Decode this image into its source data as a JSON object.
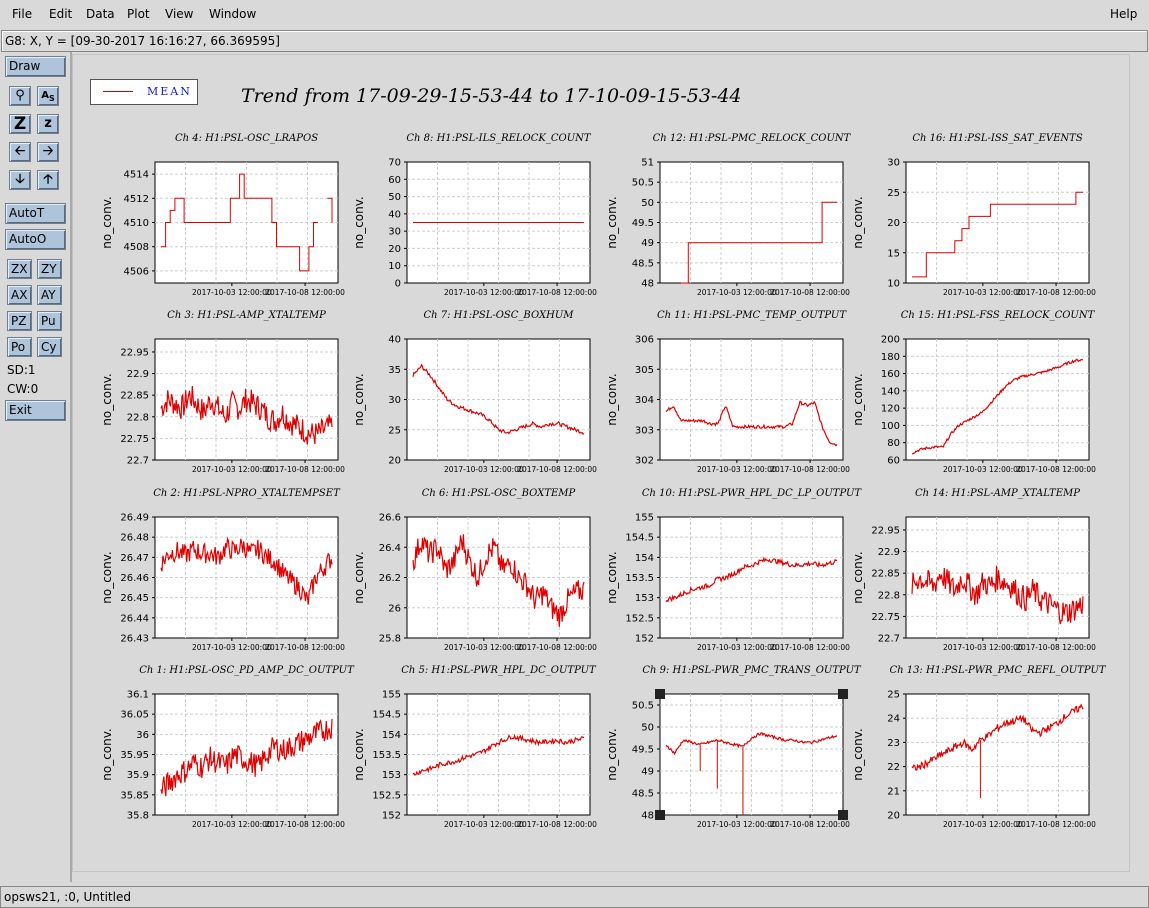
{
  "menu": {
    "file": "File",
    "edit": "Edit",
    "data": "Data",
    "plot": "Plot",
    "view": "View",
    "window": "Window",
    "help": "Help"
  },
  "coord_text": "G8: X, Y = [09-30-2017 16:16:27, 66.369595]",
  "toolbar": {
    "draw": "Draw",
    "autot": "AutoT",
    "autoo": "AutoO",
    "zx": "ZX",
    "zy": "ZY",
    "ax": "AX",
    "ay": "AY",
    "pz": "PZ",
    "pu": "Pu",
    "po": "Po",
    "cy": "Cy",
    "sd": "SD:1",
    "cw": "CW:0",
    "exit": "Exit",
    "icons": [
      "magnify-icon",
      "text-size-icon",
      "zoom-large-icon",
      "zoom-small-icon",
      "arrow-left-icon",
      "arrow-right-icon",
      "arrow-down-icon",
      "arrow-up-icon"
    ]
  },
  "legend": {
    "label": "MEAN",
    "color": "#e00000"
  },
  "main_title": "Trend from 17-09-29-15-53-44 to 17-10-09-15-53-44",
  "status_text": "opsws21, :0, Untitled",
  "chart_data": [
    {
      "type": "line",
      "title": "Ch 4: H1:PSL-OSC_LRAPOS",
      "ylabel": "no_conv.",
      "yticks": [
        "4514",
        "4512",
        "4510",
        "4508",
        "4506"
      ],
      "ylim": [
        4505,
        4515
      ],
      "xticks": [
        "2017-10-03 12:00:00",
        "2017-10-08 12:00:00"
      ],
      "style": "step",
      "values": [
        4508,
        4510,
        4511,
        4512,
        4512,
        4510,
        4510,
        4510,
        4510,
        4510,
        4510,
        4510,
        4510,
        4510,
        4510,
        4512,
        4512,
        4514,
        4512,
        4512,
        4512,
        4512,
        4512,
        4512,
        4510,
        4508,
        4508,
        4508,
        4508,
        4508,
        4506,
        4506,
        4508,
        4510,
        4510,
        null,
        4512,
        4510
      ]
    },
    {
      "type": "line",
      "title": "Ch 8: H1:PSL-ILS_RELOCK_COUNT",
      "ylabel": "no_conv.",
      "yticks": [
        "70",
        "60",
        "50",
        "40",
        "30",
        "20",
        "10",
        "0"
      ],
      "ylim": [
        0,
        70
      ],
      "xticks": [
        "2017-10-03 12:00:00",
        "2017-10-08 12:00:00"
      ],
      "style": "step",
      "values": [
        35,
        35,
        35,
        35,
        35,
        35,
        35,
        35,
        35,
        35,
        35,
        35,
        35,
        35,
        35,
        35,
        35,
        35,
        35,
        35
      ]
    },
    {
      "type": "line",
      "title": "Ch 12: H1:PSL-PMC_RELOCK_COUNT",
      "ylabel": "no_conv.",
      "yticks": [
        "51",
        "50.5",
        "50",
        "49.5",
        "49",
        "48.5",
        "48"
      ],
      "ylim": [
        48,
        51
      ],
      "xticks": [
        "2017-10-03 12:00:00",
        "2017-10-08 12:00:00"
      ],
      "style": "step",
      "values": [
        null,
        null,
        48,
        49,
        49,
        49,
        49,
        49,
        49,
        49,
        49,
        49,
        49,
        49,
        49,
        49,
        49,
        49,
        49,
        49,
        49,
        50,
        50,
        50
      ]
    },
    {
      "type": "line",
      "title": "Ch 16: H1:PSL-ISS_SAT_EVENTS",
      "ylabel": "no_conv.",
      "yticks": [
        "30",
        "25",
        "20",
        "15",
        "10"
      ],
      "ylim": [
        10,
        30
      ],
      "xticks": [
        "2017-10-03 12:00:00",
        "2017-10-08 12:00:00"
      ],
      "style": "step",
      "values": [
        11,
        11,
        15,
        15,
        15,
        15,
        17,
        19,
        21,
        21,
        21,
        23,
        23,
        23,
        23,
        23,
        23,
        23,
        23,
        23,
        23,
        23,
        23,
        25,
        25
      ]
    },
    {
      "type": "line",
      "title": "Ch 3: H1:PSL-AMP_XTALTEMP",
      "ylabel": "no_conv.",
      "yticks": [
        "22.95",
        "22.9",
        "22.85",
        "22.8",
        "22.75",
        "22.7"
      ],
      "ylim": [
        22.7,
        22.98
      ],
      "xticks": [
        "2017-10-03 12:00:00",
        "2017-10-08 12:00:00"
      ],
      "style": "noisy",
      "values": [
        22.82,
        22.84,
        22.83,
        22.82,
        22.85,
        22.83,
        22.81,
        22.84,
        22.82,
        22.8,
        22.83,
        22.82,
        22.84,
        22.83,
        22.82,
        22.8,
        22.79,
        22.81,
        22.79,
        22.78,
        22.77,
        22.76,
        22.76,
        22.77,
        22.78
      ],
      "noise": 0.03
    },
    {
      "type": "line",
      "title": "Ch 7: H1:PSL-OSC_BOXHUM",
      "ylabel": "no_conv.",
      "yticks": [
        "40",
        "35",
        "30",
        "25",
        "20"
      ],
      "ylim": [
        20,
        40
      ],
      "xticks": [
        "2017-10-03 12:00:00",
        "2017-10-08 12:00:00"
      ],
      "style": "noisy",
      "values": [
        34,
        35.5,
        34,
        32,
        30,
        29,
        28.5,
        28,
        27.5,
        26.5,
        25,
        24.5,
        25,
        25.5,
        26,
        25.5,
        26,
        26,
        25.5,
        25,
        24.5
      ],
      "noise": 0.3
    },
    {
      "type": "line",
      "title": "Ch 11: H1:PSL-PMC_TEMP_OUTPUT",
      "ylabel": "no_conv.",
      "yticks": [
        "306",
        "305",
        "304",
        "303",
        "302"
      ],
      "ylim": [
        302,
        306
      ],
      "xticks": [
        "2017-10-03 12:00:00",
        "2017-10-08 12:00:00"
      ],
      "style": "noisy",
      "values": [
        303.6,
        303.8,
        303.3,
        303.3,
        303.3,
        303.3,
        303.2,
        303.2,
        303.8,
        303.1,
        303.1,
        303.1,
        303.1,
        303.1,
        303.1,
        303.1,
        303.1,
        303.2,
        303.9,
        303.8,
        303.9,
        303.1,
        302.6,
        302.5
      ],
      "noise": 0.05
    },
    {
      "type": "line",
      "title": "Ch 15: H1:PSL-FSS_RELOCK_COUNT",
      "ylabel": "no_conv.",
      "yticks": [
        "200",
        "180",
        "160",
        "140",
        "120",
        "100",
        "80",
        "60"
      ],
      "ylim": [
        60,
        200
      ],
      "xticks": [
        "2017-10-03 12:00:00",
        "2017-10-08 12:00:00"
      ],
      "style": "noisy",
      "values": [
        68,
        72,
        74,
        75,
        75,
        90,
        100,
        105,
        110,
        115,
        125,
        135,
        145,
        152,
        156,
        158,
        160,
        162,
        165,
        168,
        172,
        175,
        176
      ],
      "noise": 1.5
    },
    {
      "type": "line",
      "title": "Ch 2: H1:PSL-NPRO_XTALTEMPSET",
      "ylabel": "no_conv.",
      "yticks": [
        "26.49",
        "26.48",
        "26.47",
        "26.46",
        "26.45",
        "26.44",
        "26.43"
      ],
      "ylim": [
        26.43,
        26.49
      ],
      "xticks": [
        "2017-10-03 12:00:00",
        "2017-10-08 12:00:00"
      ],
      "style": "noisy",
      "values": [
        26.467,
        26.472,
        26.473,
        26.471,
        26.474,
        26.472,
        26.472,
        26.47,
        26.475,
        26.473,
        26.476,
        26.472,
        26.474,
        26.47,
        26.468,
        26.462,
        26.458,
        26.455,
        26.448,
        26.46,
        26.465,
        26.47
      ],
      "noise": 0.005
    },
    {
      "type": "line",
      "title": "Ch 6: H1:PSL-OSC_BOXTEMP",
      "ylabel": "no_conv.",
      "yticks": [
        "26.6",
        "26.4",
        "26.2",
        "26",
        "25.8"
      ],
      "ylim": [
        25.8,
        26.6
      ],
      "xticks": [
        "2017-10-03 12:00:00",
        "2017-10-08 12:00:00"
      ],
      "style": "noisy",
      "values": [
        26.3,
        26.45,
        26.35,
        26.4,
        26.25,
        26.3,
        26.45,
        26.3,
        26.2,
        26.35,
        26.4,
        26.25,
        26.3,
        26.2,
        26.15,
        26.05,
        26.1,
        26.0,
        25.95,
        26.05,
        26.1,
        26.12
      ],
      "noise": 0.08
    },
    {
      "type": "line",
      "title": "Ch 10: H1:PSL-PWR_HPL_DC_LP_OUTPUT",
      "ylabel": "no_conv.",
      "yticks": [
        "155",
        "154.5",
        "154",
        "153.5",
        "153",
        "152.5",
        "152"
      ],
      "ylim": [
        152,
        155
      ],
      "xticks": [
        "2017-10-03 12:00:00",
        "2017-10-08 12:00:00"
      ],
      "style": "noisy",
      "values": [
        152.95,
        153.0,
        153.1,
        153.2,
        153.25,
        153.3,
        153.45,
        153.5,
        153.6,
        153.75,
        153.8,
        153.9,
        153.95,
        153.9,
        153.85,
        153.8,
        153.82,
        153.85,
        153.8,
        153.85,
        153.9
      ],
      "noise": 0.06
    },
    {
      "type": "line",
      "title": "Ch 14: H1:PSL-AMP_XTALTEMP",
      "ylabel": "no_conv.",
      "yticks": [
        "22.95",
        "22.9",
        "22.85",
        "22.8",
        "22.75",
        "22.7"
      ],
      "ylim": [
        22.7,
        22.98
      ],
      "xticks": [
        "2017-10-03 12:00:00",
        "2017-10-08 12:00:00"
      ],
      "style": "noisy",
      "values": [
        22.82,
        22.84,
        22.83,
        22.82,
        22.85,
        22.83,
        22.81,
        22.84,
        22.82,
        22.8,
        22.83,
        22.82,
        22.84,
        22.83,
        22.82,
        22.8,
        22.79,
        22.81,
        22.79,
        22.78,
        22.77,
        22.76,
        22.76,
        22.77,
        22.78
      ],
      "noise": 0.03
    },
    {
      "type": "line",
      "title": "Ch 1: H1:PSL-OSC_PD_AMP_DC_OUTPUT",
      "ylabel": "no_conv.",
      "yticks": [
        "36.1",
        "36.05",
        "36",
        "35.95",
        "35.9",
        "35.85",
        "35.8"
      ],
      "ylim": [
        35.8,
        36.1
      ],
      "xticks": [
        "2017-10-03 12:00:00",
        "2017-10-08 12:00:00"
      ],
      "style": "noisy",
      "values": [
        35.86,
        35.88,
        35.9,
        35.91,
        35.93,
        35.92,
        35.94,
        35.93,
        35.92,
        35.95,
        35.94,
        35.93,
        35.92,
        35.95,
        35.97,
        35.96,
        35.97,
        35.98,
        35.99,
        36.0,
        36.01,
        36.02
      ],
      "noise": 0.03
    },
    {
      "type": "line",
      "title": "Ch 5: H1:PSL-PWR_HPL_DC_OUTPUT",
      "ylabel": "no_conv.",
      "yticks": [
        "155",
        "154.5",
        "154",
        "153.5",
        "153",
        "152.5",
        "152"
      ],
      "ylim": [
        152,
        155
      ],
      "xticks": [
        "2017-10-03 12:00:00",
        "2017-10-08 12:00:00"
      ],
      "style": "noisy",
      "values": [
        153.0,
        153.1,
        153.15,
        153.25,
        153.3,
        153.35,
        153.45,
        153.5,
        153.6,
        153.75,
        153.85,
        153.95,
        153.9,
        153.85,
        153.8,
        153.82,
        153.85,
        153.8,
        153.85,
        153.9
      ],
      "noise": 0.06
    },
    {
      "type": "line",
      "title": "Ch 9: H1:PSL-PWR_PMC_TRANS_OUTPUT",
      "ylabel": "no_conv.",
      "yticks": [
        "50.5",
        "50",
        "49.5",
        "49",
        "48.5",
        "48"
      ],
      "ylim": [
        48,
        50.75
      ],
      "xticks": [
        "2017-10-03 12:00:00",
        "2017-10-08 12:00:00"
      ],
      "style": "noisy",
      "values": [
        49.6,
        49.4,
        49.7,
        49.65,
        49.6,
        49.65,
        49.7,
        49.65,
        49.6,
        49.55,
        49.75,
        49.85,
        49.8,
        49.75,
        49.7,
        49.7,
        49.65,
        49.65,
        49.7,
        49.75,
        49.8
      ],
      "noise": 0.03,
      "spikes": [
        [
          4,
          49.0
        ],
        [
          6,
          48.6
        ],
        [
          9,
          47.8
        ]
      ]
    },
    {
      "type": "line",
      "title": "Ch 13: H1:PSL-PWR_PMC_REFL_OUTPUT",
      "ylabel": "no_conv.",
      "yticks": [
        "25",
        "24",
        "23",
        "22",
        "21",
        "20"
      ],
      "ylim": [
        20,
        25
      ],
      "xticks": [
        "2017-10-03 12:00:00",
        "2017-10-08 12:00:00"
      ],
      "style": "noisy",
      "values": [
        21.9,
        22.0,
        22.2,
        22.4,
        22.6,
        22.8,
        23.0,
        22.7,
        23.1,
        23.3,
        23.6,
        23.8,
        23.9,
        24.0,
        23.5,
        23.4,
        23.6,
        23.8,
        24.1,
        24.3,
        24.5
      ],
      "noise": 0.15,
      "spikes": [
        [
          8,
          20.7
        ]
      ]
    }
  ]
}
